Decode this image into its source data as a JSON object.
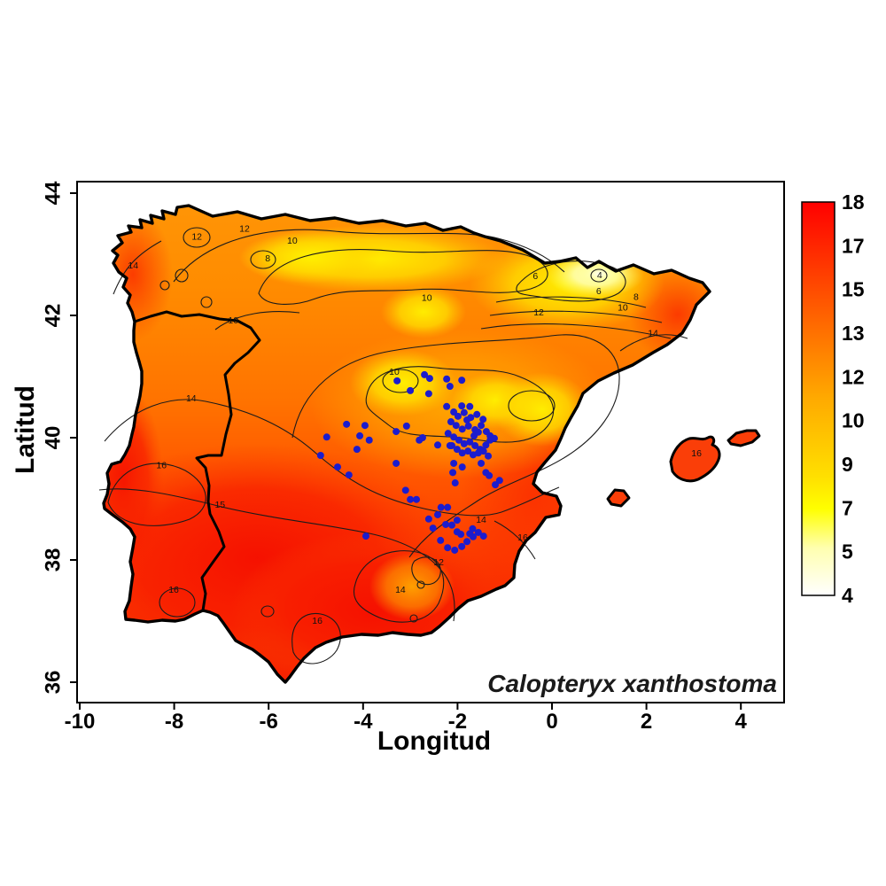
{
  "figure": {
    "species_label": "Calopteryx xanthostoma",
    "x_axis": {
      "label": "Longitud"
    },
    "y_axis": {
      "label": "Latitud"
    },
    "point_color": "#1c1ccd"
  },
  "chart_data": {
    "type": "heatmap",
    "title": "",
    "xlabel": "Longitud",
    "ylabel": "Latitud",
    "xlim": [
      -10.1,
      4.9
    ],
    "ylim": [
      35.7,
      44.2
    ],
    "x_ticks": [
      -10,
      -8,
      -6,
      -4,
      -2,
      0,
      2,
      4
    ],
    "y_ticks": [
      44,
      42,
      40,
      38,
      36
    ],
    "grid": false,
    "legend_position": "right-colorbar",
    "colorbar": {
      "range": [
        4,
        18
      ],
      "tick_labels": [
        18,
        17,
        15,
        13,
        12,
        10,
        9,
        7,
        5,
        4
      ],
      "gradient_top_to_bottom": [
        "#ff0000",
        "#ff5500",
        "#ffaa00",
        "#ffe000",
        "#ffff00",
        "#ffffb0",
        "#ffffff"
      ]
    },
    "contour_labels": [
      {
        "value": 12,
        "lon": -6.51,
        "lat": 43.41
      },
      {
        "value": 10,
        "lon": -5.5,
        "lat": 43.22
      },
      {
        "value": 8,
        "lon": -6.02,
        "lat": 42.93
      },
      {
        "value": 12,
        "lon": -7.52,
        "lat": 43.28
      },
      {
        "value": 14,
        "lon": -8.87,
        "lat": 42.81
      },
      {
        "value": 10,
        "lon": -6.75,
        "lat": 41.91
      },
      {
        "value": 10,
        "lon": -2.65,
        "lat": 42.28
      },
      {
        "value": 6,
        "lon": -0.35,
        "lat": 42.64
      },
      {
        "value": 4,
        "lon": 1.01,
        "lat": 42.65
      },
      {
        "value": 6,
        "lon": 0.99,
        "lat": 42.39
      },
      {
        "value": 8,
        "lon": 1.78,
        "lat": 42.3
      },
      {
        "value": 10,
        "lon": 1.5,
        "lat": 42.12
      },
      {
        "value": 12,
        "lon": -0.28,
        "lat": 42.04
      },
      {
        "value": 14,
        "lon": 2.14,
        "lat": 41.7
      },
      {
        "value": 10,
        "lon": -3.34,
        "lat": 41.07
      },
      {
        "value": 14,
        "lon": -7.64,
        "lat": 40.64
      },
      {
        "value": 16,
        "lon": -8.27,
        "lat": 39.54
      },
      {
        "value": 15,
        "lon": -7.03,
        "lat": 38.9
      },
      {
        "value": 16,
        "lon": -8.01,
        "lat": 37.51
      },
      {
        "value": 16,
        "lon": -4.97,
        "lat": 37.0
      },
      {
        "value": 14,
        "lon": -3.21,
        "lat": 37.51
      },
      {
        "value": 12,
        "lon": -2.4,
        "lat": 37.96
      },
      {
        "value": 14,
        "lon": -1.5,
        "lat": 38.65
      },
      {
        "value": 16,
        "lon": -0.62,
        "lat": 38.36
      },
      {
        "value": 16,
        "lon": 3.06,
        "lat": 39.74
      }
    ],
    "occurrence_points_lonlat": [
      [
        -3.28,
        40.93
      ],
      [
        -2.7,
        41.03
      ],
      [
        -2.59,
        40.97
      ],
      [
        -2.23,
        40.96
      ],
      [
        -3.0,
        40.77
      ],
      [
        -2.61,
        40.72
      ],
      [
        -2.16,
        40.84
      ],
      [
        -1.91,
        40.94
      ],
      [
        -4.35,
        40.22
      ],
      [
        -3.96,
        40.2
      ],
      [
        -4.77,
        40.01
      ],
      [
        -4.07,
        40.03
      ],
      [
        -3.87,
        39.96
      ],
      [
        -4.13,
        39.81
      ],
      [
        -4.9,
        39.71
      ],
      [
        -4.54,
        39.52
      ],
      [
        -4.3,
        39.39
      ],
      [
        -3.3,
        39.58
      ],
      [
        -3.08,
        40.19
      ],
      [
        -2.81,
        39.96
      ],
      [
        -2.74,
        40.0
      ],
      [
        -2.42,
        39.88
      ],
      [
        -3.1,
        39.14
      ],
      [
        -3.0,
        38.99
      ],
      [
        -2.87,
        38.99
      ],
      [
        -3.3,
        40.1
      ],
      [
        -2.23,
        40.51
      ],
      [
        -2.08,
        40.42
      ],
      [
        -1.91,
        40.52
      ],
      [
        -1.74,
        40.51
      ],
      [
        -1.99,
        40.35
      ],
      [
        -1.86,
        40.41
      ],
      [
        -1.72,
        40.33
      ],
      [
        -1.59,
        40.38
      ],
      [
        -1.46,
        40.3
      ],
      [
        -2.14,
        40.26
      ],
      [
        -2.03,
        40.2
      ],
      [
        -1.9,
        40.14
      ],
      [
        -1.77,
        40.19
      ],
      [
        -1.63,
        40.13
      ],
      [
        -1.5,
        40.2
      ],
      [
        -1.39,
        40.1
      ],
      [
        -1.31,
        40.03
      ],
      [
        -2.2,
        40.07
      ],
      [
        -2.08,
        40.01
      ],
      [
        -1.97,
        39.96
      ],
      [
        -1.86,
        39.9
      ],
      [
        -1.74,
        39.93
      ],
      [
        -1.63,
        39.87
      ],
      [
        -1.52,
        39.81
      ],
      [
        -1.4,
        39.88
      ],
      [
        -1.31,
        39.96
      ],
      [
        -1.78,
        39.78
      ],
      [
        -1.67,
        39.72
      ],
      [
        -1.56,
        39.75
      ],
      [
        -1.45,
        39.78
      ],
      [
        -1.9,
        39.75
      ],
      [
        -2.01,
        39.81
      ],
      [
        -2.12,
        39.87
      ],
      [
        -1.22,
        39.99
      ],
      [
        -1.35,
        39.7
      ],
      [
        -1.5,
        39.58
      ],
      [
        -1.4,
        39.43
      ],
      [
        -1.33,
        39.38
      ],
      [
        -1.2,
        39.23
      ],
      [
        -1.11,
        39.3
      ],
      [
        -2.08,
        39.58
      ],
      [
        -2.1,
        39.43
      ],
      [
        -1.9,
        39.52
      ],
      [
        -2.05,
        39.26
      ],
      [
        -2.16,
        39.87
      ],
      [
        -1.65,
        40.03
      ],
      [
        -1.56,
        40.09
      ],
      [
        -1.8,
        40.29
      ],
      [
        -2.21,
        38.86
      ],
      [
        -2.35,
        38.86
      ],
      [
        -2.61,
        38.67
      ],
      [
        -2.42,
        38.74
      ],
      [
        -2.25,
        38.58
      ],
      [
        -2.12,
        38.57
      ],
      [
        -2.01,
        38.46
      ],
      [
        -1.93,
        38.42
      ],
      [
        -1.74,
        38.43
      ],
      [
        -1.67,
        38.38
      ],
      [
        -2.36,
        38.32
      ],
      [
        -2.21,
        38.2
      ],
      [
        -2.06,
        38.16
      ],
      [
        -1.91,
        38.22
      ],
      [
        -1.8,
        38.3
      ],
      [
        -1.68,
        38.51
      ],
      [
        -1.56,
        38.45
      ],
      [
        -1.45,
        38.39
      ],
      [
        -2.52,
        38.52
      ],
      [
        -2.01,
        38.65
      ],
      [
        -3.94,
        38.39
      ]
    ],
    "series_label": "Calopteryx xanthostoma"
  }
}
